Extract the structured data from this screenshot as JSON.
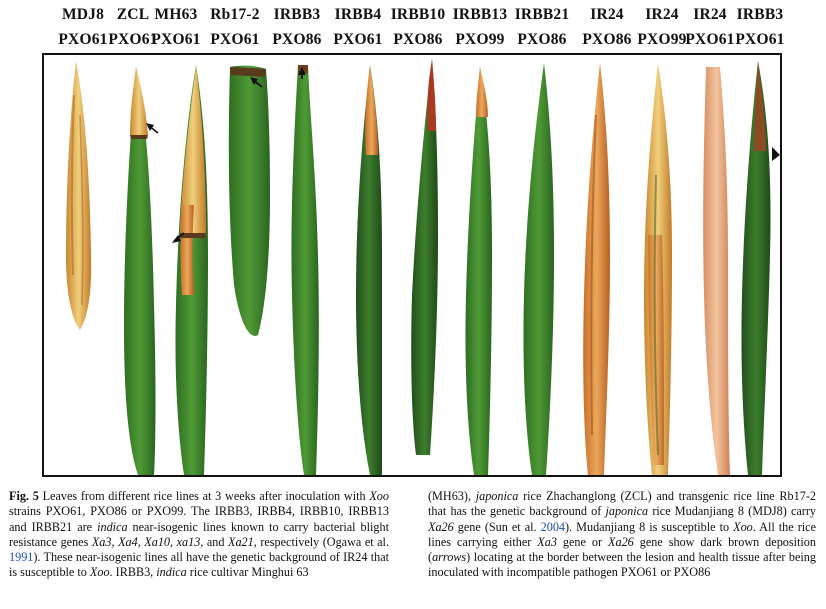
{
  "header": {
    "lines": [
      "MDJ8",
      "ZCL",
      "MH63",
      "Rb17-2",
      "IRBB3",
      "IRBB4",
      "IRBB10",
      "IRBB13",
      "IRBB21",
      "IR24",
      "IR24",
      "IR24",
      "IRBB3"
    ],
    "strains": [
      "PXO61",
      "PXO61",
      "PXO61",
      "PXO61",
      "PXO86",
      "PXO61",
      "PXO86",
      "PXO99",
      "PXO86",
      "PXO86",
      "PXO99",
      "PXO61",
      "PXO61"
    ]
  },
  "colors": {
    "leaf_green": "#3f8a2c",
    "leaf_dark": "#2c6a22",
    "lesion_yellow": "#e7b24a",
    "lesion_orange": "#d6862f",
    "deposit_brown": "#5a3a1c",
    "link_blue": "#1b4fb8"
  },
  "caption": {
    "fig_label": "Fig. 5",
    "left": [
      {
        "t": " Leaves from different rice lines at 3 weeks after inoculation with "
      },
      {
        "i": "Xoo"
      },
      {
        "t": " strains PXO61, PXO86 or PXO99. The IRBB3, IRBB4, IRBB10, IRBB13 and IRBB21 are "
      },
      {
        "i": "indica"
      },
      {
        "t": " near-isogenic lines known to carry bacterial blight resistance genes "
      },
      {
        "i": "Xa3"
      },
      {
        "t": ", "
      },
      {
        "i": "Xa4"
      },
      {
        "t": ", "
      },
      {
        "i": "Xa10"
      },
      {
        "t": ", "
      },
      {
        "i": "xa13,"
      },
      {
        "t": " and "
      },
      {
        "i": "Xa21"
      },
      {
        "t": ", respectively (Ogawa et al. "
      },
      {
        "a": "1991"
      },
      {
        "t": "). These near-isogenic lines all have the genetic background of IR24 that is susceptible to "
      },
      {
        "i": "Xoo"
      },
      {
        "t": ". IRBB3, "
      },
      {
        "i": "indica"
      },
      {
        "t": " rice cultivar Minghui 63"
      }
    ],
    "right": [
      {
        "t": "(MH63), "
      },
      {
        "i": "japonica"
      },
      {
        "t": " rice Zhachanglong (ZCL) and transgenic rice line Rb17-2 that has the genetic background of "
      },
      {
        "i": "japonica"
      },
      {
        "t": " rice Mudanjiang 8 (MDJ8) carry "
      },
      {
        "i": "Xa26"
      },
      {
        "t": " gene (Sun et al. "
      },
      {
        "a": "2004"
      },
      {
        "t": "). Mudanjiang 8 is susceptible to "
      },
      {
        "i": "Xoo"
      },
      {
        "t": ". All the rice lines carrying either "
      },
      {
        "i": "Xa3"
      },
      {
        "t": " gene or "
      },
      {
        "i": "Xa26"
      },
      {
        "t": " gene show dark brown deposition ("
      },
      {
        "i": "arrows"
      },
      {
        "t": ") locating at the border between the lesion and health tissue after being inoculated with incompatible pathogen PXO61 or PXO86"
      }
    ]
  }
}
